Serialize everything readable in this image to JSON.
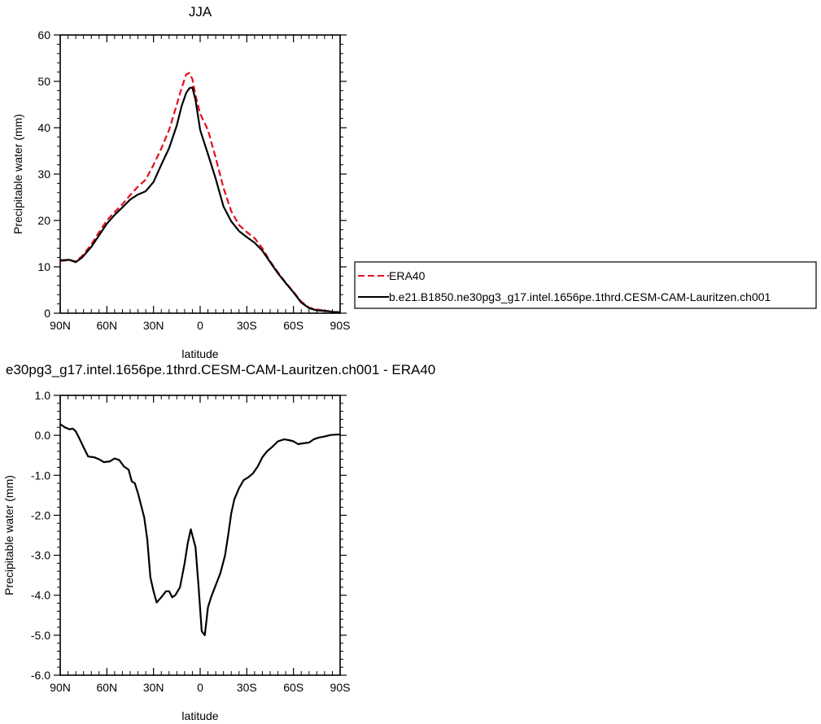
{
  "chart_data": [
    {
      "type": "line",
      "title": "JJA",
      "xlabel": "latitude",
      "ylabel": "Precipitable water (mm)",
      "xlim": [
        90,
        -90
      ],
      "ylim": [
        0,
        60
      ],
      "x_ticks": [
        90,
        60,
        30,
        0,
        -30,
        -60,
        -90
      ],
      "x_tick_labels": [
        "90N",
        "60N",
        "30N",
        "0",
        "30S",
        "60S",
        "90S"
      ],
      "y_ticks": [
        0,
        10,
        20,
        30,
        40,
        50,
        60
      ],
      "y_tick_labels": [
        "0",
        "10",
        "20",
        "30",
        "40",
        "50",
        "60"
      ],
      "legend_position": "right",
      "series": [
        {
          "name": "ERA40",
          "color": "#e4101a",
          "dash": "dashed",
          "x": [
            90,
            84,
            80,
            76,
            70,
            65,
            60,
            55,
            50,
            45,
            40,
            35,
            30,
            25,
            20,
            15,
            12,
            9,
            7,
            5,
            3,
            0,
            -5,
            -10,
            -15,
            -20,
            -25,
            -30,
            -35,
            -40,
            -45,
            -50,
            -55,
            -60,
            -65,
            -70,
            -75,
            -80,
            -85,
            -90
          ],
          "y": [
            11.3,
            11.4,
            11.2,
            12.3,
            14.8,
            17.5,
            20.0,
            21.8,
            23.5,
            25.5,
            27.3,
            28.8,
            32.0,
            35.5,
            39.5,
            45.0,
            48.5,
            51.5,
            51.8,
            50.5,
            47.0,
            43.0,
            39.5,
            33.5,
            27.0,
            22.0,
            19.0,
            17.5,
            16.2,
            14.0,
            11.2,
            8.8,
            6.6,
            4.6,
            2.5,
            1.2,
            0.8,
            0.6,
            0.3,
            0.2
          ]
        },
        {
          "name": "b.e21.B1850.ne30pg3_g17.intel.1656pe.1thrd.CESM-CAM-Lauritzen.ch001",
          "color": "#000000",
          "dash": "solid",
          "x": [
            90,
            84,
            80,
            76,
            70,
            65,
            60,
            55,
            50,
            45,
            40,
            35,
            30,
            25,
            20,
            15,
            12,
            9,
            7,
            5,
            3,
            0,
            -5,
            -10,
            -15,
            -20,
            -25,
            -30,
            -35,
            -40,
            -45,
            -50,
            -55,
            -60,
            -65,
            -70,
            -75,
            -80,
            -85,
            -90
          ],
          "y": [
            11.4,
            11.5,
            11.0,
            12.0,
            14.3,
            16.8,
            19.3,
            21.2,
            22.8,
            24.5,
            25.6,
            26.3,
            28.3,
            32.0,
            35.6,
            40.5,
            44.6,
            47.5,
            48.5,
            48.7,
            46.0,
            39.5,
            34.3,
            29.0,
            23.0,
            19.8,
            17.7,
            16.4,
            15.2,
            13.5,
            11.0,
            8.6,
            6.5,
            4.5,
            2.3,
            1.1,
            0.6,
            0.5,
            0.3,
            0.2
          ]
        }
      ]
    },
    {
      "type": "line",
      "title": "e30pg3_g17.intel.1656pe.1thrd.CESM-CAM-Lauritzen.ch001 - ERA40",
      "xlabel": "latitude",
      "ylabel": "Precipitable water (mm)",
      "xlim": [
        90,
        -90
      ],
      "ylim": [
        -6,
        1
      ],
      "x_ticks": [
        90,
        60,
        30,
        0,
        -30,
        -60,
        -90
      ],
      "x_tick_labels": [
        "90N",
        "60N",
        "30N",
        "0",
        "30S",
        "60S",
        "90S"
      ],
      "y_ticks": [
        1,
        0,
        -1,
        -2,
        -3,
        -4,
        -5,
        -6
      ],
      "y_tick_labels": [
        "1.0",
        "0.0",
        "-1.0",
        "-2.0",
        "-3.0",
        "-4.0",
        "-5.0",
        "-6.0"
      ],
      "series": [
        {
          "color": "#000000",
          "dash": "solid",
          "x": [
            90,
            87,
            84,
            82,
            80,
            78,
            75,
            72,
            68,
            65,
            62,
            58,
            55,
            52,
            49,
            46,
            44,
            42,
            40,
            38,
            36,
            34,
            32,
            30,
            28,
            25,
            22,
            20,
            18,
            16,
            13,
            10,
            8,
            6,
            5,
            3,
            1,
            -1,
            -3,
            -5,
            -7,
            -10,
            -13,
            -16,
            -18,
            -20,
            -22,
            -25,
            -28,
            -31,
            -34,
            -37,
            -40,
            -43,
            -46,
            -50,
            -54,
            -57,
            -60,
            -63,
            -66,
            -70,
            -73,
            -76,
            -80,
            -84,
            -88,
            -90
          ],
          "y": [
            0.28,
            0.2,
            0.15,
            0.17,
            0.1,
            -0.05,
            -0.3,
            -0.53,
            -0.55,
            -0.6,
            -0.67,
            -0.65,
            -0.58,
            -0.62,
            -0.78,
            -0.86,
            -1.15,
            -1.2,
            -1.45,
            -1.75,
            -2.05,
            -2.6,
            -3.55,
            -3.9,
            -4.18,
            -4.05,
            -3.9,
            -3.9,
            -4.05,
            -4.0,
            -3.8,
            -3.2,
            -2.7,
            -2.35,
            -2.5,
            -2.8,
            -3.8,
            -4.9,
            -5.0,
            -4.3,
            -4.05,
            -3.75,
            -3.45,
            -3.0,
            -2.5,
            -1.95,
            -1.6,
            -1.32,
            -1.12,
            -1.05,
            -0.95,
            -0.78,
            -0.55,
            -0.4,
            -0.3,
            -0.15,
            -0.1,
            -0.12,
            -0.15,
            -0.22,
            -0.2,
            -0.18,
            -0.1,
            -0.06,
            -0.03,
            0.01,
            0.02,
            0.02
          ]
        }
      ]
    }
  ]
}
